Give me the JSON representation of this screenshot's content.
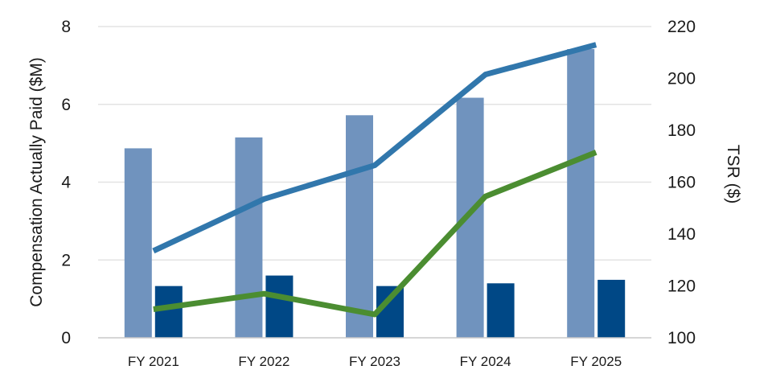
{
  "chart_data": {
    "type": "bar",
    "categories": [
      "FY 2021",
      "FY 2022",
      "FY 2023",
      "FY 2024",
      "FY 2025"
    ],
    "series": [
      {
        "kind": "bar",
        "axis": "left",
        "color": "#7093be",
        "values": [
          4.87,
          5.15,
          5.72,
          6.17,
          7.42
        ]
      },
      {
        "kind": "bar",
        "axis": "left",
        "color": "#004886",
        "values": [
          1.33,
          1.6,
          1.33,
          1.4,
          1.49
        ]
      },
      {
        "kind": "line",
        "axis": "right",
        "color": "#3177ac",
        "values": [
          133.5,
          153.5,
          166.5,
          201.5,
          213
        ]
      },
      {
        "kind": "line",
        "axis": "right",
        "color": "#4b8d31",
        "values": [
          111,
          117,
          109,
          154.5,
          171.5
        ]
      }
    ],
    "ylabel": "Compensation Actually Paid ($M)",
    "y2label": "TSR ($)",
    "ylim": [
      0,
      8
    ],
    "y2lim": [
      100,
      220
    ],
    "yticks": [
      "0",
      "2",
      "4",
      "6",
      "8"
    ],
    "y2ticks": [
      "100",
      "120",
      "140",
      "160",
      "180",
      "200",
      "220"
    ],
    "grid": true
  }
}
